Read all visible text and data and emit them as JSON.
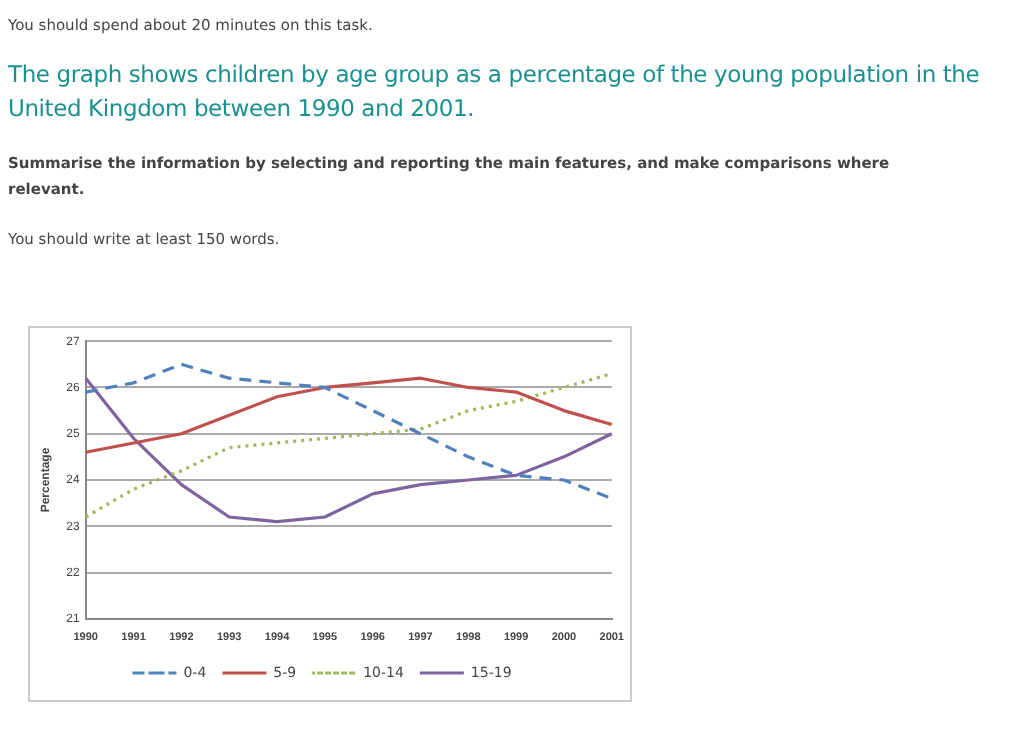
{
  "chart_data": {
    "type": "line",
    "title": "The graph shows children by age group as a percentage of the young population in the United Kingdom between 1990 and 2001.",
    "annotations": [
      "You should spend about 20 minutes on this task.",
      "Summarise the information by selecting and reporting the main features, and make comparisons where relevant.",
      "You should write at least 150 words."
    ],
    "ylabel": "Percentage",
    "categories": [
      "1990",
      "1991",
      "1992",
      "1993",
      "1994",
      "1995",
      "1996",
      "1997",
      "1998",
      "1999",
      "2000",
      "2001"
    ],
    "series": [
      {
        "name": "0-4",
        "color": "#4f81bd",
        "line_style": "dashed",
        "values": [
          25.9,
          26.1,
          26.5,
          26.2,
          26.1,
          26.0,
          25.5,
          25.0,
          24.5,
          24.1,
          24.0,
          23.6
        ]
      },
      {
        "name": "5-9",
        "color": "#c0504d",
        "line_style": "solid",
        "values": [
          24.6,
          24.8,
          25.0,
          25.4,
          25.8,
          26.0,
          26.1,
          26.2,
          26.0,
          25.9,
          25.5,
          25.2
        ]
      },
      {
        "name": "10-14",
        "color": "#9bbb59",
        "line_style": "dotted",
        "values": [
          23.2,
          23.8,
          24.2,
          24.7,
          24.8,
          24.9,
          25.0,
          25.1,
          25.5,
          25.7,
          26.0,
          26.3
        ]
      },
      {
        "name": "15-19",
        "color": "#8064a2",
        "line_style": "solid",
        "values": [
          26.2,
          24.9,
          23.9,
          23.2,
          23.1,
          23.2,
          23.7,
          23.9,
          24.0,
          24.1,
          24.5,
          25.0
        ]
      }
    ],
    "ylim": [
      21,
      27
    ],
    "yticks": [
      21,
      22,
      23,
      24,
      25,
      26,
      27
    ],
    "grid": "y",
    "legend": "bottom",
    "marker": "none"
  }
}
